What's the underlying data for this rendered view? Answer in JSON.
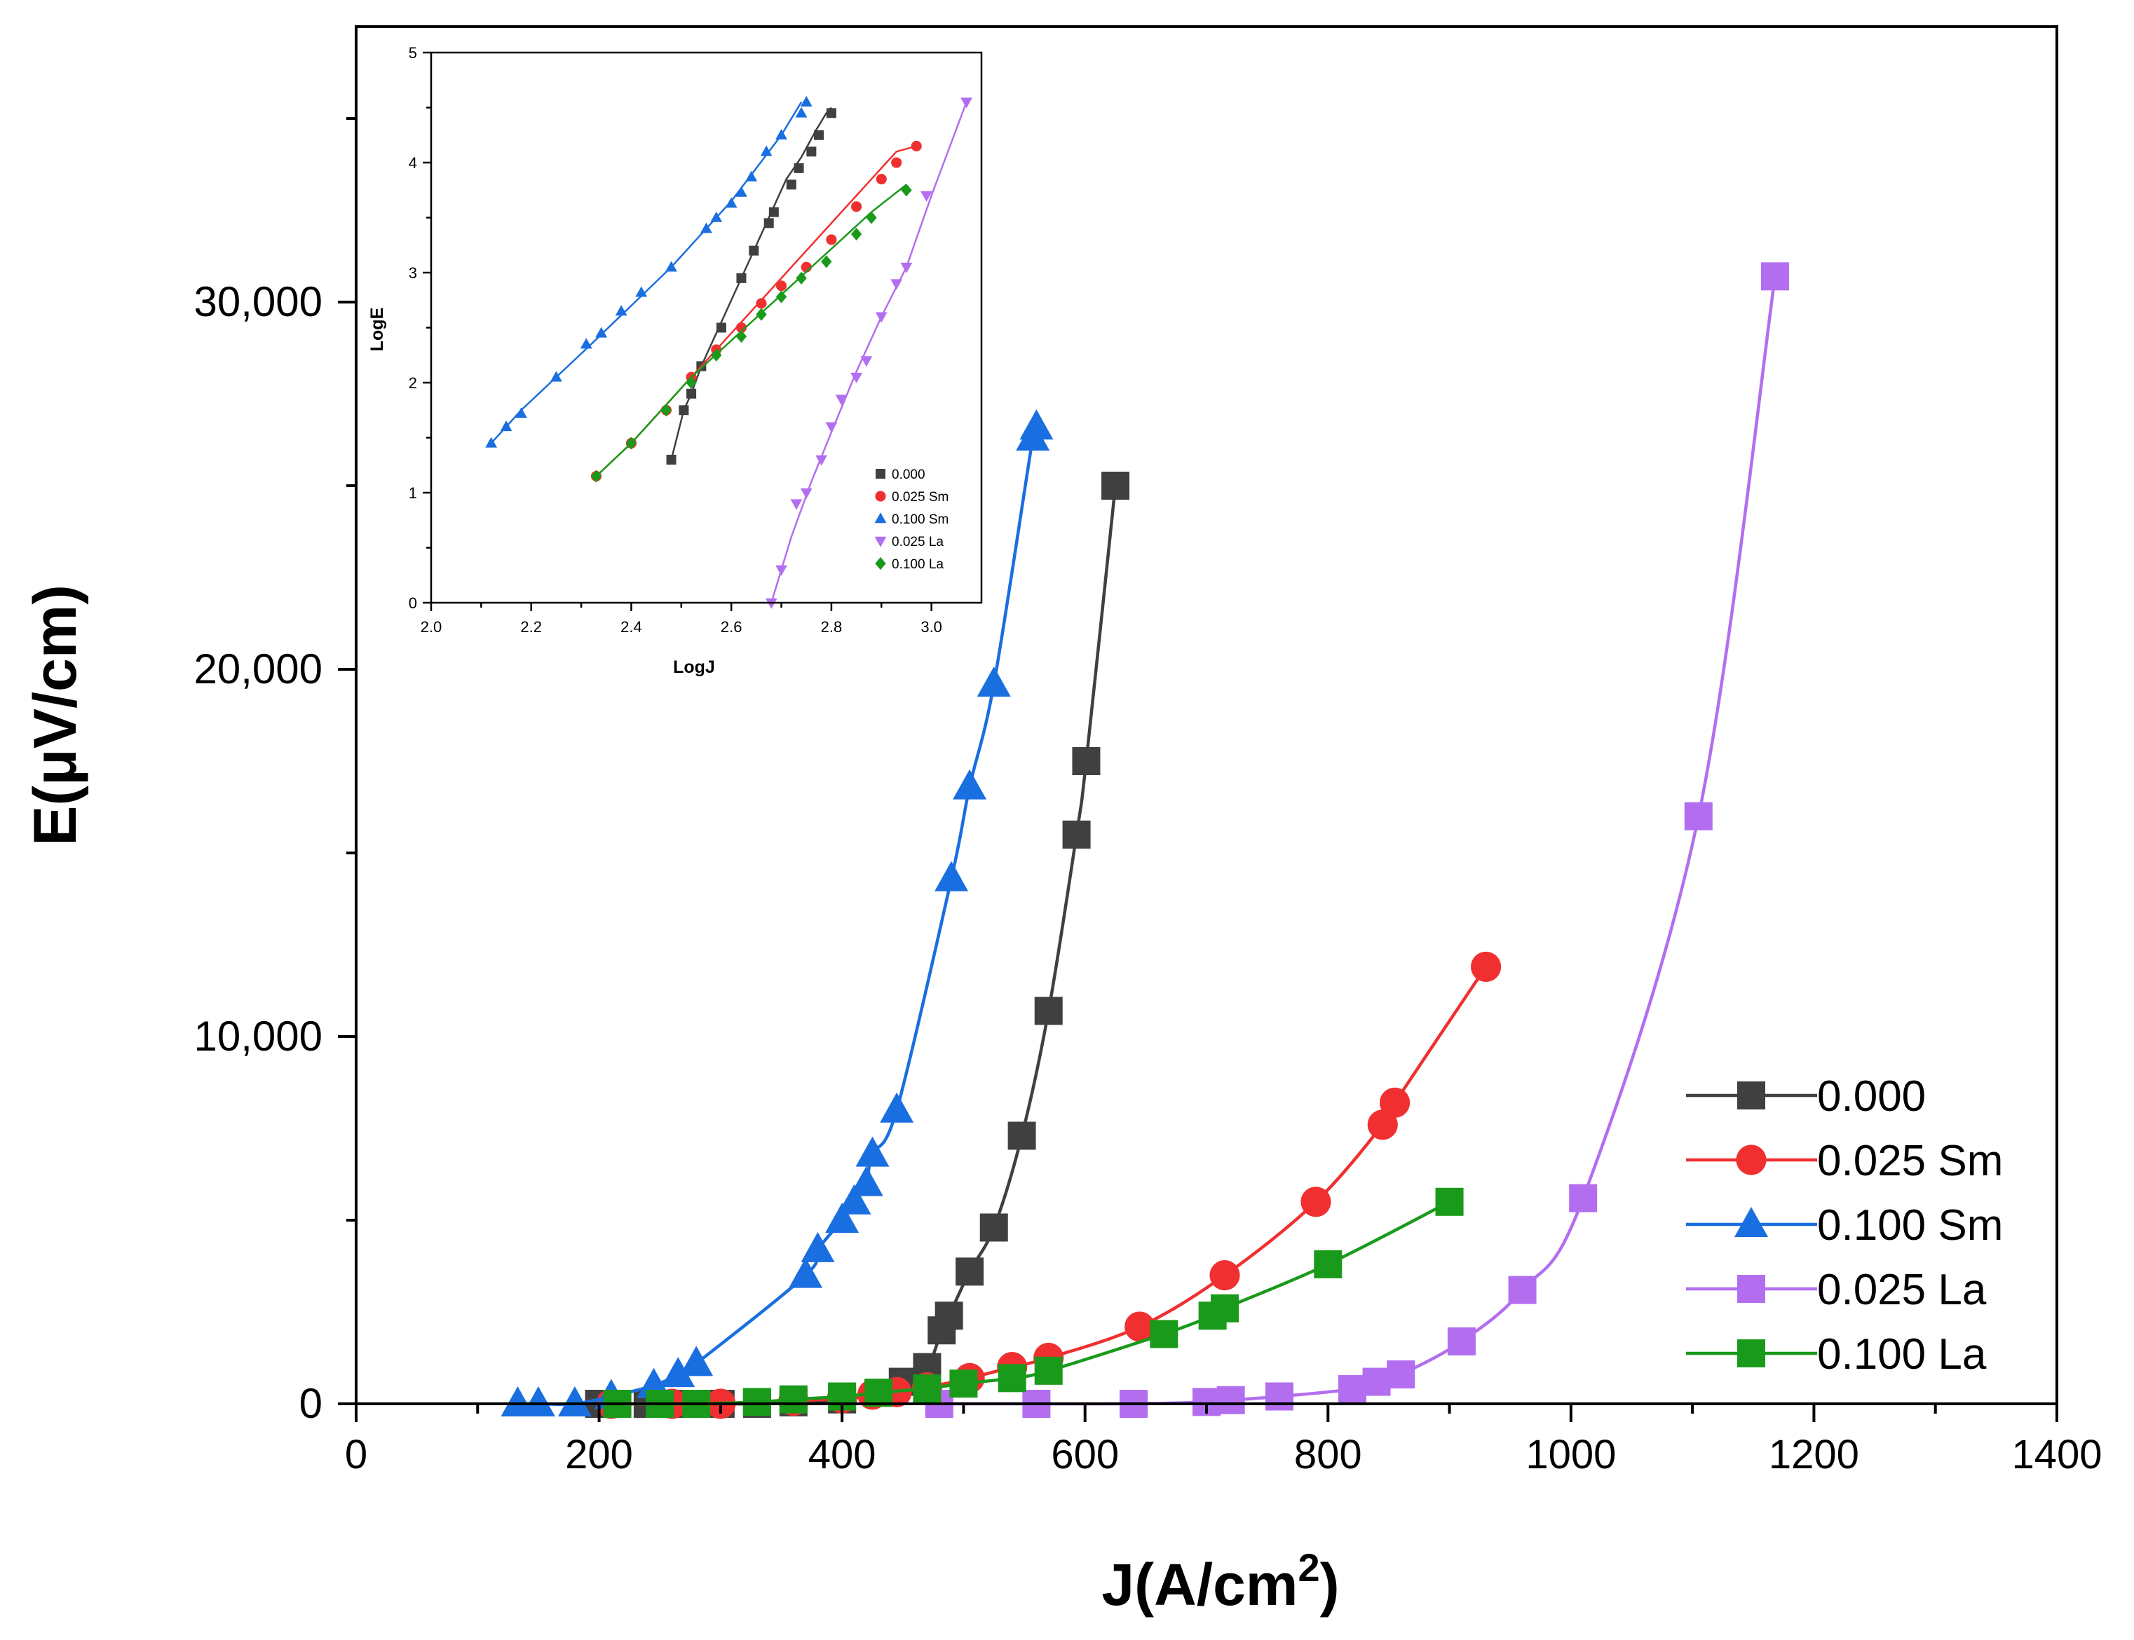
{
  "chart_data": [
    {
      "id": "main",
      "type": "line",
      "title": "",
      "xlabel": "J(A/cm",
      "xlabel_sup": "2",
      "xlabel_close": ")",
      "ylabel": "E(μV/cm)",
      "xlim": [
        0,
        1400
      ],
      "ylim": [
        0,
        37500
      ],
      "xticks": [
        0,
        200,
        400,
        600,
        800,
        1000,
        1200,
        1400
      ],
      "xtick_labels": [
        "0",
        "200",
        "400",
        "600",
        "800",
        "1000",
        "1200",
        "1400"
      ],
      "yticks": [
        0,
        10000,
        20000,
        30000
      ],
      "ytick_labels": [
        "0",
        "10,000",
        "20,000",
        "30,000"
      ],
      "legend_position": "lower-right",
      "series": [
        {
          "name": "0.000",
          "color": "#404040",
          "marker": "square",
          "x": [
            200,
            215,
            240,
            265,
            300,
            330,
            360,
            400,
            430,
            450,
            470,
            482,
            488,
            505,
            525,
            548,
            570,
            593,
            601,
            625
          ],
          "y": [
            0,
            0,
            0,
            0,
            0,
            0,
            40,
            120,
            300,
            600,
            1000,
            2000,
            2400,
            3600,
            4800,
            7300,
            10700,
            15500,
            17500,
            25000
          ]
        },
        {
          "name": "0.025 Sm",
          "color": "#f03030",
          "marker": "circle",
          "x": [
            210,
            260,
            300,
            360,
            400,
            425,
            445,
            470,
            505,
            540,
            570,
            645,
            715,
            790,
            845,
            855,
            930
          ],
          "y": [
            0,
            0,
            0,
            80,
            150,
            250,
            320,
            450,
            700,
            1000,
            1250,
            2100,
            3500,
            5500,
            7600,
            8200,
            11900
          ]
        },
        {
          "name": "0.100 Sm",
          "color": "#1a6fe0",
          "marker": "triangle",
          "x": [
            133,
            150,
            180,
            210,
            245,
            265,
            280,
            370,
            380,
            400,
            410,
            420,
            425,
            445,
            490,
            505,
            525,
            557,
            560
          ],
          "y": [
            0,
            0,
            0,
            200,
            500,
            800,
            1100,
            3500,
            4200,
            5000,
            5500,
            6000,
            6800,
            8000,
            14300,
            16800,
            19600,
            26300,
            26600
          ]
        },
        {
          "name": "0.025 La",
          "color": "#b36ef0",
          "marker": "square",
          "x": [
            480,
            560,
            640,
            700,
            720,
            760,
            820,
            840,
            860,
            910,
            960,
            1010,
            1105,
            1168
          ],
          "y": [
            0,
            0,
            0,
            50,
            100,
            200,
            400,
            600,
            800,
            1700,
            3100,
            5600,
            16000,
            30700
          ]
        },
        {
          "name": "0.100 La",
          "color": "#1a9a1a",
          "marker": "square",
          "x": [
            215,
            250,
            280,
            330,
            360,
            400,
            430,
            470,
            500,
            540,
            570,
            665,
            705,
            715,
            800,
            900
          ],
          "y": [
            0,
            0,
            0,
            50,
            120,
            200,
            300,
            420,
            550,
            700,
            900,
            1900,
            2400,
            2600,
            3800,
            5500
          ]
        }
      ]
    },
    {
      "id": "inset",
      "type": "line",
      "title": "",
      "xlabel": "LogJ",
      "ylabel": "LogE",
      "xlim": [
        2.0,
        3.1
      ],
      "ylim": [
        0,
        5
      ],
      "xticks": [
        2.0,
        2.2,
        2.4,
        2.6,
        2.8,
        3.0
      ],
      "xtick_labels": [
        "2.0",
        "2.2",
        "2.4",
        "2.6",
        "2.8",
        "3.0"
      ],
      "yticks": [
        0,
        1,
        2,
        3,
        4,
        5
      ],
      "ytick_labels": [
        "0",
        "1",
        "2",
        "3",
        "4",
        "5"
      ],
      "legend_position": "lower-right",
      "series": [
        {
          "name": "0.000",
          "color": "#404040",
          "marker": "square",
          "x": [
            2.48,
            2.505,
            2.52,
            2.54,
            2.57,
            2.6,
            2.63,
            2.66,
            2.68,
            2.71,
            2.74,
            2.77,
            2.79,
            2.8
          ],
          "y": [
            1.3,
            1.75,
            1.9,
            2.15,
            2.45,
            2.75,
            3.05,
            3.35,
            3.55,
            3.85,
            4.05,
            4.3,
            4.45,
            4.5
          ],
          "marks": [
            [
              2.48,
              1.3
            ],
            [
              2.505,
              1.75
            ],
            [
              2.52,
              1.9
            ],
            [
              2.54,
              2.15
            ],
            [
              2.58,
              2.5
            ],
            [
              2.62,
              2.95
            ],
            [
              2.645,
              3.2
            ],
            [
              2.675,
              3.45
            ],
            [
              2.685,
              3.55
            ],
            [
              2.72,
              3.8
            ],
            [
              2.735,
              3.95
            ],
            [
              2.76,
              4.1
            ],
            [
              2.775,
              4.25
            ],
            [
              2.8,
              4.45
            ]
          ]
        },
        {
          "name": "0.025 Sm",
          "color": "#f03030",
          "marker": "circle",
          "x": [
            2.33,
            2.4,
            2.46,
            2.52,
            2.58,
            2.64,
            2.7,
            2.76,
            2.82,
            2.88,
            2.93,
            2.97
          ],
          "y": [
            1.15,
            1.45,
            1.75,
            2.05,
            2.35,
            2.65,
            2.95,
            3.25,
            3.55,
            3.85,
            4.1,
            4.15
          ],
          "marks": [
            [
              2.33,
              1.15
            ],
            [
              2.4,
              1.45
            ],
            [
              2.47,
              1.75
            ],
            [
              2.52,
              2.05
            ],
            [
              2.57,
              2.3
            ],
            [
              2.62,
              2.5
            ],
            [
              2.66,
              2.72
            ],
            [
              2.7,
              2.88
            ],
            [
              2.75,
              3.05
            ],
            [
              2.8,
              3.3
            ],
            [
              2.85,
              3.6
            ],
            [
              2.9,
              3.85
            ],
            [
              2.93,
              4.0
            ],
            [
              2.97,
              4.15
            ]
          ]
        },
        {
          "name": "0.100 Sm",
          "color": "#1a6fe0",
          "marker": "triangle",
          "x": [
            2.12,
            2.18,
            2.25,
            2.32,
            2.4,
            2.48,
            2.55,
            2.6,
            2.65,
            2.7,
            2.74
          ],
          "y": [
            1.45,
            1.75,
            2.05,
            2.35,
            2.7,
            3.05,
            3.4,
            3.65,
            3.95,
            4.25,
            4.55
          ],
          "marks": [
            [
              2.12,
              1.45
            ],
            [
              2.15,
              1.6
            ],
            [
              2.18,
              1.72
            ],
            [
              2.25,
              2.05
            ],
            [
              2.31,
              2.35
            ],
            [
              2.34,
              2.45
            ],
            [
              2.38,
              2.65
            ],
            [
              2.42,
              2.82
            ],
            [
              2.48,
              3.05
            ],
            [
              2.55,
              3.4
            ],
            [
              2.57,
              3.5
            ],
            [
              2.6,
              3.63
            ],
            [
              2.62,
              3.73
            ],
            [
              2.64,
              3.87
            ],
            [
              2.67,
              4.1
            ],
            [
              2.7,
              4.25
            ],
            [
              2.74,
              4.45
            ],
            [
              2.75,
              4.55
            ]
          ]
        },
        {
          "name": "0.025 La",
          "color": "#b36ef0",
          "marker": "triangle-down",
          "x": [
            2.68,
            2.72,
            2.76,
            2.8,
            2.85,
            2.9,
            2.95,
            3.0,
            3.07
          ],
          "y": [
            0.0,
            0.6,
            1.1,
            1.55,
            2.1,
            2.6,
            3.05,
            3.7,
            4.55
          ],
          "marks": [
            [
              2.68,
              0.0
            ],
            [
              2.7,
              0.3
            ],
            [
              2.73,
              0.9
            ],
            [
              2.75,
              1.0
            ],
            [
              2.78,
              1.3
            ],
            [
              2.8,
              1.6
            ],
            [
              2.82,
              1.85
            ],
            [
              2.85,
              2.05
            ],
            [
              2.87,
              2.2
            ],
            [
              2.9,
              2.6
            ],
            [
              2.93,
              2.9
            ],
            [
              2.95,
              3.05
            ],
            [
              2.99,
              3.7
            ],
            [
              3.07,
              4.55
            ]
          ]
        },
        {
          "name": "0.100 La",
          "color": "#1a9a1a",
          "marker": "diamond",
          "x": [
            2.33,
            2.4,
            2.46,
            2.52,
            2.58,
            2.64,
            2.7,
            2.76,
            2.82,
            2.88,
            2.95
          ],
          "y": [
            1.15,
            1.45,
            1.75,
            2.05,
            2.3,
            2.55,
            2.8,
            3.05,
            3.3,
            3.55,
            3.8
          ],
          "marks": [
            [
              2.33,
              1.15
            ],
            [
              2.4,
              1.45
            ],
            [
              2.47,
              1.75
            ],
            [
              2.52,
              2.0
            ],
            [
              2.57,
              2.25
            ],
            [
              2.62,
              2.42
            ],
            [
              2.66,
              2.62
            ],
            [
              2.7,
              2.78
            ],
            [
              2.74,
              2.95
            ],
            [
              2.79,
              3.1
            ],
            [
              2.85,
              3.35
            ],
            [
              2.88,
              3.5
            ],
            [
              2.95,
              3.75
            ]
          ]
        }
      ]
    }
  ]
}
